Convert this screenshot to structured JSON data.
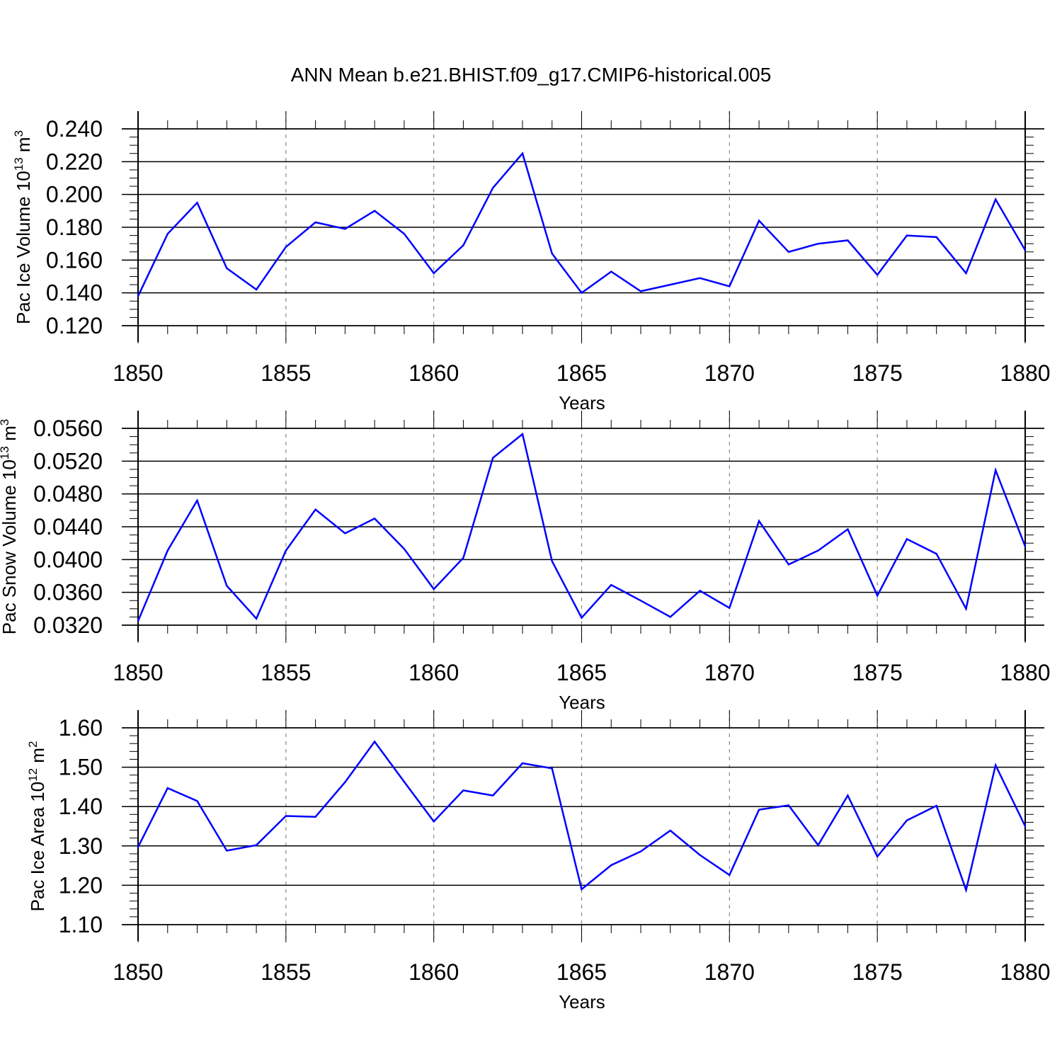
{
  "title": "ANN Mean b.e21.BHIST.f09_g17.CMIP6-historical.005",
  "chart_data": [
    {
      "type": "line",
      "ylabel": "Pac Ice Volume 10",
      "ylabel_exp": "13",
      "ylabel_unit": " m",
      "ylabel_unit_exp": "3",
      "xlabel": "Years",
      "xlim": [
        1850,
        1880
      ],
      "ylim": [
        0.12,
        0.24
      ],
      "yticks": [
        0.12,
        0.14,
        0.16,
        0.18,
        0.2,
        0.22,
        0.24
      ],
      "ytick_labels": [
        "0.120",
        "0.140",
        "0.160",
        "0.180",
        "0.200",
        "0.220",
        "0.240"
      ],
      "yminor_step": 0.005,
      "xticks": [
        1850,
        1855,
        1860,
        1865,
        1870,
        1875,
        1880
      ],
      "xtick_labels": [
        "1850",
        "1855",
        "1860",
        "1865",
        "1870",
        "1875",
        "1880"
      ],
      "grid": "vertical dashed at major x ticks",
      "color": "#0000ff",
      "x": [
        1850,
        1851,
        1852,
        1853,
        1854,
        1855,
        1856,
        1857,
        1858,
        1859,
        1860,
        1861,
        1862,
        1863,
        1864,
        1865,
        1866,
        1867,
        1868,
        1869,
        1870,
        1871,
        1872,
        1873,
        1874,
        1875,
        1876,
        1877,
        1878,
        1879,
        1880
      ],
      "values": [
        0.138,
        0.176,
        0.195,
        0.155,
        0.142,
        0.168,
        0.183,
        0.179,
        0.19,
        0.176,
        0.152,
        0.169,
        0.204,
        0.225,
        0.164,
        0.14,
        0.153,
        0.141,
        0.145,
        0.149,
        0.144,
        0.184,
        0.165,
        0.17,
        0.172,
        0.151,
        0.175,
        0.174,
        0.152,
        0.197,
        0.166
      ]
    },
    {
      "type": "line",
      "ylabel": "Pac Snow Volume 10",
      "ylabel_exp": "13",
      "ylabel_unit": " m",
      "ylabel_unit_exp": "3",
      "xlabel": "Years",
      "xlim": [
        1850,
        1880
      ],
      "ylim": [
        0.032,
        0.056
      ],
      "yticks": [
        0.032,
        0.036,
        0.04,
        0.044,
        0.048,
        0.052,
        0.056
      ],
      "ytick_labels": [
        "0.0320",
        "0.0360",
        "0.0400",
        "0.0440",
        "0.0480",
        "0.0520",
        "0.0560"
      ],
      "yminor_step": 0.001,
      "xticks": [
        1850,
        1855,
        1860,
        1865,
        1870,
        1875,
        1880
      ],
      "xtick_labels": [
        "1850",
        "1855",
        "1860",
        "1865",
        "1870",
        "1875",
        "1880"
      ],
      "grid": "vertical dashed at major x ticks",
      "color": "#0000ff",
      "x": [
        1850,
        1851,
        1852,
        1853,
        1854,
        1855,
        1856,
        1857,
        1858,
        1859,
        1860,
        1861,
        1862,
        1863,
        1864,
        1865,
        1866,
        1867,
        1868,
        1869,
        1870,
        1871,
        1872,
        1873,
        1874,
        1875,
        1876,
        1877,
        1878,
        1879,
        1880
      ],
      "values": [
        0.0325,
        0.0411,
        0.0472,
        0.0368,
        0.0328,
        0.0411,
        0.0461,
        0.0432,
        0.045,
        0.0413,
        0.0364,
        0.0402,
        0.0524,
        0.0553,
        0.0398,
        0.0329,
        0.0369,
        0.035,
        0.033,
        0.0362,
        0.0341,
        0.0447,
        0.0394,
        0.0411,
        0.0437,
        0.0356,
        0.0425,
        0.0407,
        0.034,
        0.0509,
        0.0416
      ]
    },
    {
      "type": "line",
      "ylabel": "Pac Ice Area 10",
      "ylabel_exp": "12",
      "ylabel_unit": " m",
      "ylabel_unit_exp": "2",
      "xlabel": "Years",
      "xlim": [
        1850,
        1880
      ],
      "ylim": [
        1.1,
        1.6
      ],
      "yticks": [
        1.1,
        1.2,
        1.3,
        1.4,
        1.5,
        1.6
      ],
      "ytick_labels": [
        "1.10",
        "1.20",
        "1.30",
        "1.40",
        "1.50",
        "1.60"
      ],
      "yminor_step": 0.02,
      "xticks": [
        1850,
        1855,
        1860,
        1865,
        1870,
        1875,
        1880
      ],
      "xtick_labels": [
        "1850",
        "1855",
        "1860",
        "1865",
        "1870",
        "1875",
        "1880"
      ],
      "grid": "vertical dashed at major x ticks",
      "color": "#0000ff",
      "x": [
        1850,
        1851,
        1852,
        1853,
        1854,
        1855,
        1856,
        1857,
        1858,
        1859,
        1860,
        1861,
        1862,
        1863,
        1864,
        1865,
        1866,
        1867,
        1868,
        1869,
        1870,
        1871,
        1872,
        1873,
        1874,
        1875,
        1876,
        1877,
        1878,
        1879,
        1880
      ],
      "values": [
        1.297,
        1.447,
        1.414,
        1.288,
        1.302,
        1.376,
        1.374,
        1.462,
        1.565,
        1.463,
        1.362,
        1.441,
        1.428,
        1.51,
        1.497,
        1.19,
        1.251,
        1.286,
        1.339,
        1.277,
        1.226,
        1.392,
        1.403,
        1.302,
        1.428,
        1.273,
        1.365,
        1.402,
        1.188,
        1.505,
        1.35
      ]
    }
  ]
}
